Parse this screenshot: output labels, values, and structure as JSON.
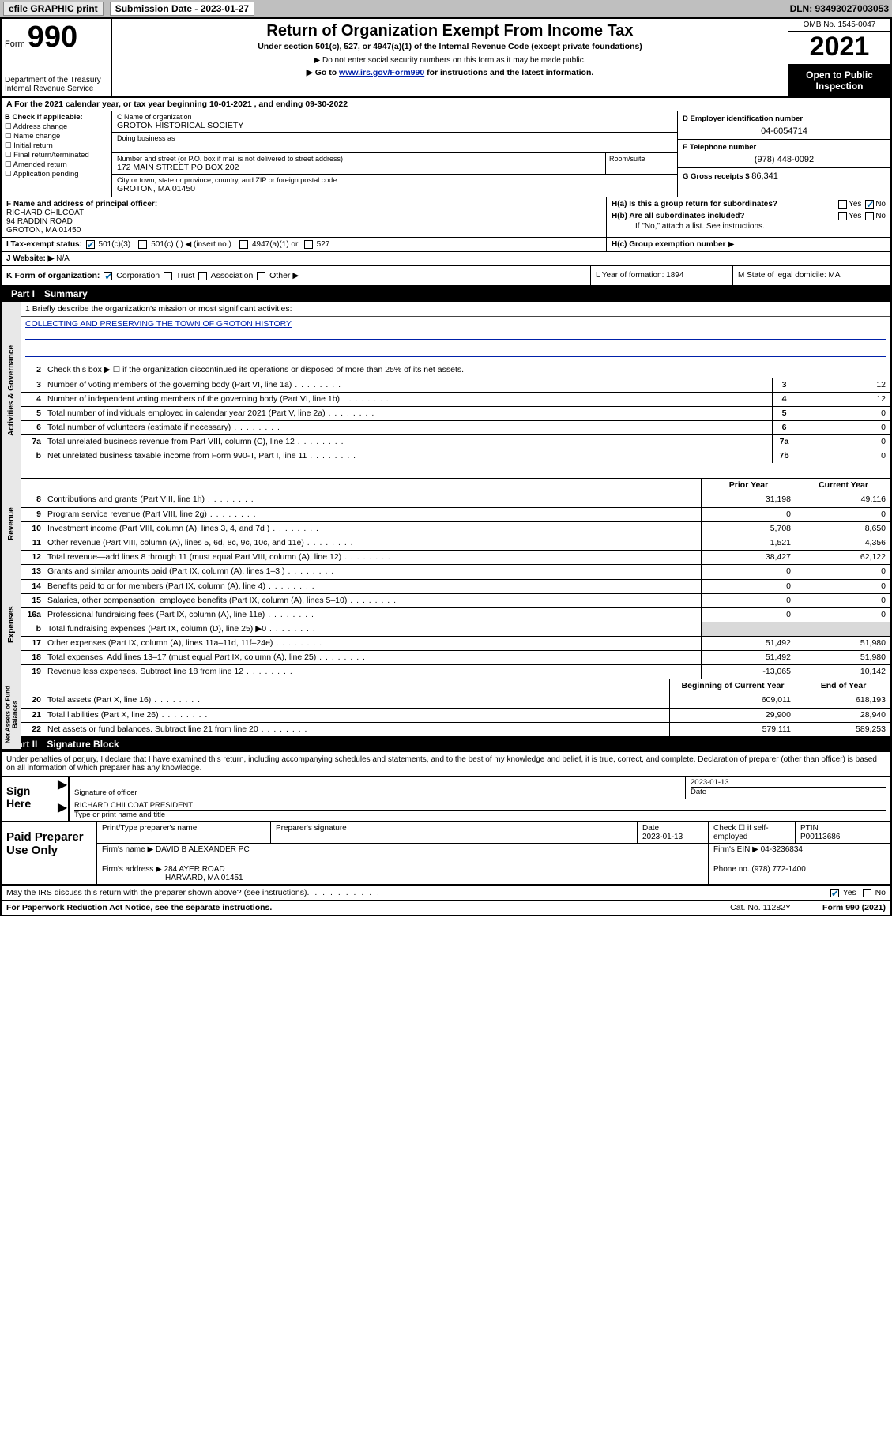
{
  "topbar": {
    "efile": "efile GRAPHIC print",
    "subdate_label": "Submission Date - 2023-01-27",
    "dln": "DLN: 93493027003053"
  },
  "header": {
    "form_label": "Form",
    "form_num": "990",
    "dept": "Department of the Treasury\nInternal Revenue Service",
    "title": "Return of Organization Exempt From Income Tax",
    "sub1": "Under section 501(c), 527, or 4947(a)(1) of the Internal Revenue Code (except private foundations)",
    "sub2": "▶ Do not enter social security numbers on this form as it may be made public.",
    "sub3_pre": "▶ Go to ",
    "sub3_link": "www.irs.gov/Form990",
    "sub3_post": " for instructions and the latest information.",
    "omb": "OMB No. 1545-0047",
    "year": "2021",
    "open": "Open to Public Inspection"
  },
  "line_a": "A For the 2021 calendar year, or tax year beginning 10-01-2021   , and ending 09-30-2022",
  "col_b": {
    "title": "B Check if applicable:",
    "items": [
      "Address change",
      "Name change",
      "Initial return",
      "Final return/terminated",
      "Amended return",
      "Application pending"
    ]
  },
  "col_c": {
    "name_label": "C Name of organization",
    "name": "GROTON HISTORICAL SOCIETY",
    "dba_label": "Doing business as",
    "dba": "",
    "street_label": "Number and street (or P.O. box if mail is not delivered to street address)",
    "street": "172 MAIN STREET PO BOX 202",
    "room_label": "Room/suite",
    "city_label": "City or town, state or province, country, and ZIP or foreign postal code",
    "city": "GROTON, MA  01450"
  },
  "col_d": {
    "ein_label": "D Employer identification number",
    "ein": "04-6054714",
    "tel_label": "E Telephone number",
    "tel": "(978) 448-0092",
    "gross_label": "G Gross receipts $",
    "gross": "86,341"
  },
  "section_f": {
    "f_label": "F  Name and address of principal officer:",
    "f_name": "RICHARD CHILCOAT",
    "f_addr1": "94 RADDIN ROAD",
    "f_addr2": "GROTON, MA  01450",
    "ha": "H(a)  Is this a group return for subordinates?",
    "ha_yes": "Yes",
    "ha_no": "No",
    "hb": "H(b)  Are all subordinates included?",
    "hb_yes": "Yes",
    "hb_no": "No",
    "hb_note": "If \"No,\" attach a list. See instructions.",
    "hc": "H(c)  Group exemption number ▶"
  },
  "line_i": {
    "label": "I     Tax-exempt status:",
    "opt1": "501(c)(3)",
    "opt2": "501(c) (   ) ◀ (insert no.)",
    "opt3": "4947(a)(1) or",
    "opt4": "527"
  },
  "line_j": {
    "label": "J    Website: ▶",
    "val": "N/A"
  },
  "line_k": {
    "label": "K Form of organization:",
    "o1": "Corporation",
    "o2": "Trust",
    "o3": "Association",
    "o4": "Other ▶",
    "l": "L Year of formation: 1894",
    "m": "M State of legal domicile: MA"
  },
  "part1": {
    "hdr_part": "Part I",
    "hdr_title": "Summary",
    "mission_label": "1   Briefly describe the organization's mission or most significant activities:",
    "mission": "COLLECTING AND PRESERVING THE TOWN OF GROTON HISTORY",
    "gov": {
      "sidelabel": "Activities & Governance",
      "lines": [
        {
          "n": "2",
          "d": "Check this box ▶ ☐  if the organization discontinued its operations or disposed of more than 25% of its net assets."
        },
        {
          "n": "3",
          "d": "Number of voting members of the governing body (Part VI, line 1a)",
          "box": "3",
          "v": "12"
        },
        {
          "n": "4",
          "d": "Number of independent voting members of the governing body (Part VI, line 1b)",
          "box": "4",
          "v": "12"
        },
        {
          "n": "5",
          "d": "Total number of individuals employed in calendar year 2021 (Part V, line 2a)",
          "box": "5",
          "v": "0"
        },
        {
          "n": "6",
          "d": "Total number of volunteers (estimate if necessary)",
          "box": "6",
          "v": "0"
        },
        {
          "n": "7a",
          "d": "Total unrelated business revenue from Part VIII, column (C), line 12",
          "box": "7a",
          "v": "0"
        },
        {
          "n": "b",
          "d": "Net unrelated business taxable income from Form 990-T, Part I, line 11",
          "box": "7b",
          "v": "0"
        }
      ]
    },
    "col_headers": {
      "prior": "Prior Year",
      "curr": "Current Year"
    },
    "rev": {
      "sidelabel": "Revenue",
      "lines": [
        {
          "n": "8",
          "d": "Contributions and grants (Part VIII, line 1h)",
          "p": "31,198",
          "c": "49,116"
        },
        {
          "n": "9",
          "d": "Program service revenue (Part VIII, line 2g)",
          "p": "0",
          "c": "0"
        },
        {
          "n": "10",
          "d": "Investment income (Part VIII, column (A), lines 3, 4, and 7d )",
          "p": "5,708",
          "c": "8,650"
        },
        {
          "n": "11",
          "d": "Other revenue (Part VIII, column (A), lines 5, 6d, 8c, 9c, 10c, and 11e)",
          "p": "1,521",
          "c": "4,356"
        },
        {
          "n": "12",
          "d": "Total revenue—add lines 8 through 11 (must equal Part VIII, column (A), line 12)",
          "p": "38,427",
          "c": "62,122"
        }
      ]
    },
    "exp": {
      "sidelabel": "Expenses",
      "lines": [
        {
          "n": "13",
          "d": "Grants and similar amounts paid (Part IX, column (A), lines 1–3 )",
          "p": "0",
          "c": "0"
        },
        {
          "n": "14",
          "d": "Benefits paid to or for members (Part IX, column (A), line 4)",
          "p": "0",
          "c": "0"
        },
        {
          "n": "15",
          "d": "Salaries, other compensation, employee benefits (Part IX, column (A), lines 5–10)",
          "p": "0",
          "c": "0"
        },
        {
          "n": "16a",
          "d": "Professional fundraising fees (Part IX, column (A), line 11e)",
          "p": "0",
          "c": "0"
        },
        {
          "n": "b",
          "d": "Total fundraising expenses (Part IX, column (D), line 25) ▶0",
          "shade": true
        },
        {
          "n": "17",
          "d": "Other expenses (Part IX, column (A), lines 11a–11d, 11f–24e)",
          "p": "51,492",
          "c": "51,980"
        },
        {
          "n": "18",
          "d": "Total expenses. Add lines 13–17 (must equal Part IX, column (A), line 25)",
          "p": "51,492",
          "c": "51,980"
        },
        {
          "n": "19",
          "d": "Revenue less expenses. Subtract line 18 from line 12",
          "p": "-13,065",
          "c": "10,142"
        }
      ]
    },
    "net_headers": {
      "b": "Beginning of Current Year",
      "e": "End of Year"
    },
    "net": {
      "sidelabel": "Net Assets or Fund Balances",
      "lines": [
        {
          "n": "20",
          "d": "Total assets (Part X, line 16)",
          "p": "609,011",
          "c": "618,193"
        },
        {
          "n": "21",
          "d": "Total liabilities (Part X, line 26)",
          "p": "29,900",
          "c": "28,940"
        },
        {
          "n": "22",
          "d": "Net assets or fund balances. Subtract line 21 from line 20",
          "p": "579,111",
          "c": "589,253"
        }
      ]
    }
  },
  "part2": {
    "hdr_part": "Part II",
    "hdr_title": "Signature Block",
    "intro": "Under penalties of perjury, I declare that I have examined this return, including accompanying schedules and statements, and to the best of my knowledge and belief, it is true, correct, and complete. Declaration of preparer (other than officer) is based on all information of which preparer has any knowledge.",
    "sign_here": "Sign Here",
    "sig_officer_lbl": "Signature of officer",
    "sig_date": "2023-01-13",
    "sig_date_lbl": "Date",
    "sig_name": "RICHARD CHILCOAT  PRESIDENT",
    "sig_name_lbl": "Type or print name and title",
    "prep_label": "Paid Preparer Use Only",
    "prep_h1": "Print/Type preparer's name",
    "prep_h2": "Preparer's signature",
    "prep_h3": "Date",
    "prep_date": "2023-01-13",
    "prep_h4": "Check ☐ if self-employed",
    "prep_h5": "PTIN",
    "prep_ptin": "P00113686",
    "firm_name_lbl": "Firm's name    ▶",
    "firm_name": "DAVID B ALEXANDER PC",
    "firm_ein_lbl": "Firm's EIN ▶",
    "firm_ein": "04-3236834",
    "firm_addr_lbl": "Firm's address ▶",
    "firm_addr1": "284 AYER ROAD",
    "firm_addr2": "HARVARD, MA  01451",
    "firm_phone_lbl": "Phone no.",
    "firm_phone": "(978) 772-1400",
    "discuss": "May the IRS discuss this return with the preparer shown above? (see instructions)",
    "discuss_yes": "Yes",
    "discuss_no": "No"
  },
  "footer": {
    "paperwork": "For Paperwork Reduction Act Notice, see the separate instructions.",
    "cat": "Cat. No. 11282Y",
    "formno": "Form 990 (2021)"
  },
  "colors": {
    "link": "#0020aa",
    "topbar": "#bfbfbf",
    "check": "#0066aa"
  }
}
